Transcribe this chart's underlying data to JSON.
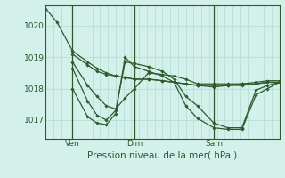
{
  "background_color": "#d4f0eb",
  "grid_color": "#b0ddd4",
  "line_color": "#2d5a2d",
  "marker_color": "#2d5a2d",
  "xlabel": "Pression niveau de la mer( hPa )",
  "ylim": [
    1016.4,
    1020.65
  ],
  "yticks": [
    1017,
    1018,
    1019,
    1020
  ],
  "xtick_labels": [
    "Ven",
    "Dim",
    "Sam"
  ],
  "vline_x": [
    0.115,
    0.38,
    0.72
  ],
  "series": [
    {
      "x": [
        0.0,
        0.05,
        0.115,
        0.18,
        0.22,
        0.26,
        0.3,
        0.34,
        0.38,
        0.44,
        0.5,
        0.55,
        0.6,
        0.65,
        0.72,
        0.78,
        0.84,
        0.9,
        0.95,
        1.0
      ],
      "y": [
        1020.55,
        1020.1,
        1019.2,
        1018.85,
        1018.65,
        1018.5,
        1018.4,
        1018.35,
        1018.3,
        1018.3,
        1018.25,
        1018.2,
        1018.15,
        1018.1,
        1018.05,
        1018.1,
        1018.15,
        1018.15,
        1018.2,
        1018.2
      ]
    },
    {
      "x": [
        0.115,
        0.18,
        0.22,
        0.26,
        0.3,
        0.34,
        0.38,
        0.44,
        0.5,
        0.55,
        0.6,
        0.65,
        0.72,
        0.78,
        0.84,
        0.9,
        0.95,
        1.0
      ],
      "y": [
        1019.1,
        1018.75,
        1018.55,
        1018.45,
        1018.4,
        1018.35,
        1018.3,
        1018.3,
        1018.25,
        1018.2,
        1018.15,
        1018.1,
        1018.1,
        1018.1,
        1018.1,
        1018.15,
        1018.2,
        1018.2
      ]
    },
    {
      "x": [
        0.115,
        0.18,
        0.22,
        0.26,
        0.3,
        0.34,
        0.38,
        0.44,
        0.5,
        0.55,
        0.6,
        0.65,
        0.72,
        0.78,
        0.84,
        0.9,
        0.95,
        1.0
      ],
      "y": [
        1018.85,
        1018.1,
        1017.75,
        1017.45,
        1017.35,
        1017.7,
        1018.0,
        1018.5,
        1018.45,
        1018.4,
        1018.3,
        1018.15,
        1018.15,
        1018.15,
        1018.15,
        1018.2,
        1018.25,
        1018.25
      ]
    },
    {
      "x": [
        0.115,
        0.18,
        0.22,
        0.26,
        0.3,
        0.34,
        0.38,
        0.44,
        0.5,
        0.55,
        0.6,
        0.65,
        0.72,
        0.78,
        0.84,
        0.9,
        0.95,
        1.0
      ],
      "y": [
        1018.65,
        1017.6,
        1017.15,
        1017.0,
        1017.3,
        1018.85,
        1018.8,
        1018.7,
        1018.55,
        1018.3,
        1017.75,
        1017.45,
        1016.9,
        1016.75,
        1016.75,
        1017.95,
        1018.1,
        1018.2
      ]
    },
    {
      "x": [
        0.115,
        0.18,
        0.22,
        0.26,
        0.3,
        0.34,
        0.38,
        0.44,
        0.5,
        0.55,
        0.6,
        0.65,
        0.72,
        0.78,
        0.84,
        0.9,
        0.95,
        1.0
      ],
      "y": [
        1018.0,
        1017.1,
        1016.9,
        1016.85,
        1017.2,
        1019.0,
        1018.7,
        1018.55,
        1018.4,
        1018.2,
        1017.45,
        1017.05,
        1016.75,
        1016.7,
        1016.7,
        1017.8,
        1018.0,
        1018.2
      ]
    }
  ],
  "tick_fontsize": 6.5,
  "xlabel_fontsize": 7.5
}
